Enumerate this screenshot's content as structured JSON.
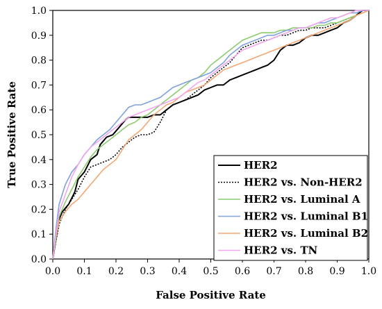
{
  "chart_data": {
    "type": "line",
    "title": "",
    "xlabel": "False Positive Rate",
    "ylabel": "True Positive Rate",
    "xlim": [
      0.0,
      1.0
    ],
    "ylim": [
      0.0,
      1.0
    ],
    "xticks": [
      "0.0",
      "0.1",
      "0.2",
      "0.3",
      "0.4",
      "0.5",
      "0.6",
      "0.7",
      "0.8",
      "0.9",
      "1.0"
    ],
    "yticks": [
      "0.0",
      "0.1",
      "0.2",
      "0.3",
      "0.4",
      "0.5",
      "0.6",
      "0.7",
      "0.8",
      "0.9",
      "1.0"
    ],
    "grid": false,
    "legend_position": "bottom-right",
    "series": [
      {
        "name": "HER2",
        "color": "#000000",
        "dash": "solid",
        "x": [
          0,
          0.01,
          0.02,
          0.03,
          0.05,
          0.07,
          0.08,
          0.1,
          0.12,
          0.14,
          0.15,
          0.17,
          0.19,
          0.21,
          0.23,
          0.24,
          0.26,
          0.28,
          0.3,
          0.32,
          0.34,
          0.36,
          0.38,
          0.4,
          0.42,
          0.44,
          0.46,
          0.48,
          0.5,
          0.52,
          0.54,
          0.56,
          0.58,
          0.6,
          0.62,
          0.64,
          0.66,
          0.68,
          0.7,
          0.72,
          0.74,
          0.76,
          0.78,
          0.8,
          0.82,
          0.84,
          0.86,
          0.88,
          0.9,
          0.92,
          0.94,
          0.96,
          0.98,
          1.0
        ],
        "y": [
          0,
          0.08,
          0.16,
          0.19,
          0.22,
          0.27,
          0.32,
          0.35,
          0.4,
          0.42,
          0.46,
          0.49,
          0.5,
          0.53,
          0.56,
          0.57,
          0.57,
          0.57,
          0.57,
          0.58,
          0.58,
          0.6,
          0.62,
          0.63,
          0.64,
          0.65,
          0.66,
          0.68,
          0.69,
          0.7,
          0.7,
          0.72,
          0.73,
          0.74,
          0.75,
          0.76,
          0.77,
          0.78,
          0.8,
          0.84,
          0.86,
          0.86,
          0.87,
          0.89,
          0.9,
          0.9,
          0.91,
          0.92,
          0.93,
          0.95,
          0.96,
          0.98,
          1.0,
          1.0
        ]
      },
      {
        "name": "HER2 vs. Non-HER2",
        "color": "#000000",
        "dash": "dotted",
        "x": [
          0,
          0.01,
          0.02,
          0.04,
          0.06,
          0.08,
          0.1,
          0.12,
          0.14,
          0.16,
          0.18,
          0.2,
          0.22,
          0.24,
          0.26,
          0.28,
          0.3,
          0.32,
          0.34,
          0.36,
          0.38,
          0.4,
          0.42,
          0.44,
          0.46,
          0.48,
          0.5,
          0.52,
          0.54,
          0.56,
          0.58,
          0.6,
          0.62,
          0.64,
          0.66,
          0.68,
          0.7,
          0.72,
          0.74,
          0.76,
          0.78,
          0.8,
          0.82,
          0.84,
          0.86,
          0.88,
          0.9,
          0.92,
          0.94,
          0.96,
          0.98,
          1.0
        ],
        "y": [
          0,
          0.07,
          0.14,
          0.2,
          0.24,
          0.28,
          0.33,
          0.37,
          0.38,
          0.39,
          0.4,
          0.42,
          0.45,
          0.47,
          0.49,
          0.5,
          0.5,
          0.51,
          0.55,
          0.6,
          0.62,
          0.63,
          0.64,
          0.66,
          0.68,
          0.7,
          0.73,
          0.75,
          0.77,
          0.79,
          0.82,
          0.85,
          0.86,
          0.87,
          0.88,
          0.88,
          0.89,
          0.9,
          0.9,
          0.91,
          0.92,
          0.92,
          0.93,
          0.93,
          0.93,
          0.94,
          0.95,
          0.96,
          0.97,
          0.98,
          1.0,
          1.0
        ]
      },
      {
        "name": "HER2 vs. Luminal A",
        "color": "#8ccb6e",
        "dash": "solid",
        "x": [
          0,
          0.01,
          0.02,
          0.04,
          0.06,
          0.08,
          0.1,
          0.12,
          0.14,
          0.16,
          0.18,
          0.2,
          0.22,
          0.24,
          0.26,
          0.28,
          0.3,
          0.32,
          0.34,
          0.36,
          0.38,
          0.4,
          0.42,
          0.44,
          0.46,
          0.48,
          0.5,
          0.52,
          0.54,
          0.56,
          0.58,
          0.6,
          0.62,
          0.64,
          0.66,
          0.68,
          0.7,
          0.72,
          0.74,
          0.76,
          0.78,
          0.8,
          0.82,
          0.84,
          0.86,
          0.88,
          0.9,
          0.92,
          0.94,
          0.96,
          0.98,
          1.0
        ],
        "y": [
          0,
          0.08,
          0.17,
          0.23,
          0.28,
          0.33,
          0.37,
          0.41,
          0.44,
          0.46,
          0.48,
          0.5,
          0.52,
          0.54,
          0.55,
          0.57,
          0.58,
          0.6,
          0.62,
          0.64,
          0.66,
          0.68,
          0.7,
          0.72,
          0.73,
          0.75,
          0.78,
          0.8,
          0.82,
          0.84,
          0.86,
          0.88,
          0.89,
          0.9,
          0.91,
          0.91,
          0.91,
          0.92,
          0.92,
          0.93,
          0.93,
          0.93,
          0.93,
          0.94,
          0.94,
          0.95,
          0.95,
          0.96,
          0.97,
          0.98,
          0.99,
          1.0
        ]
      },
      {
        "name": "HER2 vs. Luminal B1",
        "color": "#7fa1dc",
        "dash": "solid",
        "x": [
          0,
          0.01,
          0.02,
          0.04,
          0.06,
          0.08,
          0.1,
          0.12,
          0.14,
          0.16,
          0.18,
          0.2,
          0.22,
          0.24,
          0.26,
          0.28,
          0.3,
          0.32,
          0.34,
          0.36,
          0.38,
          0.4,
          0.42,
          0.44,
          0.46,
          0.48,
          0.5,
          0.52,
          0.54,
          0.56,
          0.58,
          0.6,
          0.62,
          0.64,
          0.66,
          0.68,
          0.7,
          0.72,
          0.74,
          0.76,
          0.78,
          0.8,
          0.82,
          0.84,
          0.86,
          0.88,
          0.9,
          0.92,
          0.94,
          0.96,
          0.98,
          1.0
        ],
        "y": [
          0,
          0.12,
          0.22,
          0.3,
          0.35,
          0.38,
          0.42,
          0.45,
          0.48,
          0.5,
          0.52,
          0.55,
          0.58,
          0.61,
          0.62,
          0.62,
          0.63,
          0.64,
          0.65,
          0.67,
          0.69,
          0.7,
          0.71,
          0.72,
          0.73,
          0.74,
          0.75,
          0.77,
          0.79,
          0.82,
          0.84,
          0.86,
          0.87,
          0.88,
          0.89,
          0.9,
          0.9,
          0.91,
          0.92,
          0.92,
          0.93,
          0.93,
          0.94,
          0.95,
          0.95,
          0.96,
          0.97,
          0.98,
          0.99,
          0.99,
          1.0,
          1.0
        ]
      },
      {
        "name": "HER2 vs. Luminal B2",
        "color": "#f3a774",
        "dash": "solid",
        "x": [
          0,
          0.01,
          0.02,
          0.04,
          0.06,
          0.08,
          0.1,
          0.12,
          0.14,
          0.16,
          0.18,
          0.2,
          0.22,
          0.24,
          0.26,
          0.28,
          0.3,
          0.32,
          0.34,
          0.36,
          0.38,
          0.4,
          0.42,
          0.44,
          0.46,
          0.48,
          0.5,
          0.52,
          0.54,
          0.56,
          0.58,
          0.6,
          0.62,
          0.64,
          0.66,
          0.68,
          0.7,
          0.72,
          0.74,
          0.76,
          0.78,
          0.8,
          0.82,
          0.84,
          0.86,
          0.88,
          0.9,
          0.92,
          0.94,
          0.96,
          0.98,
          1.0
        ],
        "y": [
          0,
          0.09,
          0.15,
          0.19,
          0.22,
          0.24,
          0.27,
          0.3,
          0.33,
          0.36,
          0.38,
          0.4,
          0.44,
          0.48,
          0.5,
          0.52,
          0.55,
          0.58,
          0.6,
          0.62,
          0.63,
          0.65,
          0.67,
          0.68,
          0.69,
          0.7,
          0.72,
          0.74,
          0.76,
          0.77,
          0.78,
          0.79,
          0.8,
          0.81,
          0.82,
          0.83,
          0.84,
          0.85,
          0.86,
          0.87,
          0.88,
          0.89,
          0.9,
          0.91,
          0.92,
          0.93,
          0.94,
          0.95,
          0.96,
          0.98,
          0.99,
          1.0
        ]
      },
      {
        "name": "HER2 vs. TN",
        "color": "#f1a6ee",
        "dash": "solid",
        "x": [
          0,
          0.01,
          0.02,
          0.04,
          0.06,
          0.08,
          0.1,
          0.12,
          0.14,
          0.16,
          0.18,
          0.2,
          0.22,
          0.24,
          0.26,
          0.28,
          0.3,
          0.32,
          0.34,
          0.36,
          0.38,
          0.4,
          0.42,
          0.44,
          0.46,
          0.48,
          0.5,
          0.52,
          0.54,
          0.56,
          0.58,
          0.6,
          0.62,
          0.64,
          0.66,
          0.68,
          0.7,
          0.72,
          0.74,
          0.76,
          0.78,
          0.8,
          0.82,
          0.84,
          0.86,
          0.88,
          0.9,
          0.92,
          0.94,
          0.96,
          0.98,
          1.0
        ],
        "y": [
          0,
          0.1,
          0.19,
          0.26,
          0.33,
          0.38,
          0.42,
          0.45,
          0.47,
          0.49,
          0.51,
          0.53,
          0.55,
          0.57,
          0.58,
          0.59,
          0.6,
          0.61,
          0.62,
          0.63,
          0.64,
          0.65,
          0.67,
          0.69,
          0.71,
          0.72,
          0.74,
          0.76,
          0.78,
          0.8,
          0.82,
          0.84,
          0.85,
          0.86,
          0.87,
          0.88,
          0.89,
          0.9,
          0.91,
          0.92,
          0.93,
          0.93,
          0.94,
          0.95,
          0.96,
          0.97,
          0.97,
          0.98,
          0.99,
          1.0,
          1.0,
          1.0
        ]
      }
    ]
  }
}
